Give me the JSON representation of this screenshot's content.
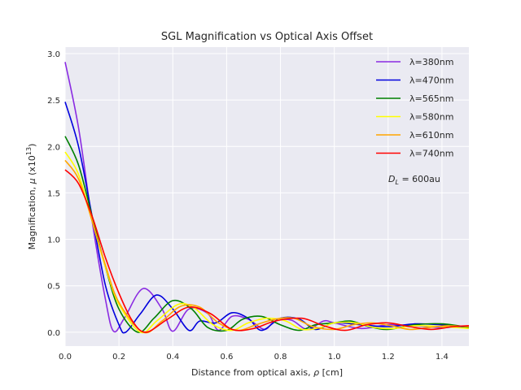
{
  "chart_data": {
    "type": "line",
    "title": "SGL Magnification vs Optical Axis Offset",
    "xlabel_main": "Distance from optical axis, ",
    "xlabel_sym": "ρ",
    "xlabel_unit": " [cm]",
    "ylabel_main": "Magnification, ",
    "ylabel_sym": "μ",
    "ylabel_unit_pre": " (x10",
    "ylabel_unit_exp": "13",
    "ylabel_unit_post": ")",
    "xlim": [
      0,
      1.5
    ],
    "ylim": [
      -0.15,
      3.07
    ],
    "xticks": [
      0.0,
      0.2,
      0.4,
      0.6,
      0.8,
      1.0,
      1.2,
      1.4
    ],
    "xtick_labels": [
      "0.0",
      "0.2",
      "0.4",
      "0.6",
      "0.8",
      "1.0",
      "1.2",
      "1.4"
    ],
    "yticks": [
      0.0,
      0.5,
      1.0,
      1.5,
      2.0,
      2.5,
      3.0
    ],
    "ytick_labels": [
      "0.0",
      "0.5",
      "1.0",
      "1.5",
      "2.0",
      "2.5",
      "3.0"
    ],
    "grid": true,
    "legend_position": "top-right",
    "annotation": {
      "sym": "D",
      "sub": "L",
      "text": " = 600au"
    },
    "series": [
      {
        "name": "λ=380nm",
        "wavelength_nm": 380,
        "color": "#8a2be2",
        "peak": 2.91,
        "first_zero": 0.182,
        "x": [
          0.0,
          0.05,
          0.1,
          0.15,
          0.18,
          0.22,
          0.29,
          0.36,
          0.4,
          0.46,
          0.53,
          0.57,
          0.62,
          0.68,
          0.74,
          0.78,
          0.84,
          0.9,
          0.96,
          1.0,
          1.1,
          1.2,
          1.3,
          1.4,
          1.5
        ],
        "y": [
          2.91,
          2.2,
          1.2,
          0.35,
          0.01,
          0.15,
          0.47,
          0.25,
          0.01,
          0.25,
          0.2,
          0.02,
          0.17,
          0.14,
          0.03,
          0.12,
          0.13,
          0.03,
          0.12,
          0.1,
          0.04,
          0.08,
          0.07,
          0.05,
          0.07
        ]
      },
      {
        "name": "λ=470nm",
        "wavelength_nm": 470,
        "color": "#0000dd",
        "peak": 2.48,
        "first_zero": 0.225,
        "x": [
          0.0,
          0.05,
          0.1,
          0.15,
          0.2,
          0.225,
          0.28,
          0.34,
          0.4,
          0.46,
          0.5,
          0.56,
          0.62,
          0.68,
          0.73,
          0.8,
          0.87,
          0.93,
          1.0,
          1.1,
          1.2,
          1.3,
          1.4,
          1.5
        ],
        "y": [
          2.48,
          2.0,
          1.25,
          0.5,
          0.08,
          0.0,
          0.2,
          0.4,
          0.25,
          0.02,
          0.12,
          0.1,
          0.21,
          0.15,
          0.02,
          0.15,
          0.14,
          0.03,
          0.1,
          0.08,
          0.06,
          0.09,
          0.08,
          0.05
        ]
      },
      {
        "name": "λ=565nm",
        "wavelength_nm": 565,
        "color": "#008000",
        "peak": 2.11,
        "first_zero": 0.27,
        "x": [
          0.0,
          0.05,
          0.1,
          0.15,
          0.2,
          0.27,
          0.33,
          0.4,
          0.47,
          0.53,
          0.6,
          0.66,
          0.73,
          0.8,
          0.87,
          0.93,
          1.0,
          1.06,
          1.13,
          1.2,
          1.3,
          1.4,
          1.5
        ],
        "y": [
          2.11,
          1.8,
          1.25,
          0.7,
          0.25,
          0.0,
          0.15,
          0.34,
          0.25,
          0.05,
          0.02,
          0.14,
          0.17,
          0.08,
          0.02,
          0.08,
          0.1,
          0.12,
          0.06,
          0.03,
          0.08,
          0.09,
          0.05
        ]
      },
      {
        "name": "λ=580nm",
        "wavelength_nm": 580,
        "color": "#ffff00",
        "peak": 1.94,
        "first_zero": 0.28,
        "x": [
          0.0,
          0.05,
          0.1,
          0.15,
          0.2,
          0.28,
          0.34,
          0.42,
          0.48,
          0.55,
          0.62,
          0.68,
          0.75,
          0.82,
          0.88,
          0.95,
          1.0,
          1.08,
          1.15,
          1.22,
          1.3,
          1.4,
          1.5
        ],
        "y": [
          1.94,
          1.7,
          1.2,
          0.7,
          0.3,
          0.0,
          0.12,
          0.3,
          0.26,
          0.08,
          0.02,
          0.1,
          0.15,
          0.12,
          0.03,
          0.05,
          0.1,
          0.1,
          0.05,
          0.04,
          0.07,
          0.06,
          0.04
        ]
      },
      {
        "name": "λ=610nm",
        "wavelength_nm": 610,
        "color": "#ffa500",
        "peak": 1.85,
        "first_zero": 0.29,
        "x": [
          0.0,
          0.05,
          0.1,
          0.15,
          0.2,
          0.29,
          0.36,
          0.43,
          0.5,
          0.57,
          0.64,
          0.71,
          0.78,
          0.85,
          0.92,
          1.0,
          1.07,
          1.14,
          1.21,
          1.28,
          1.35,
          1.42,
          1.5
        ],
        "y": [
          1.85,
          1.65,
          1.2,
          0.72,
          0.32,
          0.0,
          0.12,
          0.28,
          0.27,
          0.1,
          0.02,
          0.08,
          0.14,
          0.15,
          0.06,
          0.03,
          0.08,
          0.1,
          0.07,
          0.03,
          0.05,
          0.07,
          0.06
        ]
      },
      {
        "name": "λ=740nm",
        "wavelength_nm": 740,
        "color": "#ff0000",
        "peak": 1.75,
        "first_zero": 0.3,
        "x": [
          0.0,
          0.05,
          0.1,
          0.15,
          0.2,
          0.25,
          0.3,
          0.38,
          0.46,
          0.54,
          0.62,
          0.7,
          0.78,
          0.88,
          0.96,
          1.04,
          1.12,
          1.2,
          1.28,
          1.36,
          1.44,
          1.5
        ],
        "y": [
          1.75,
          1.6,
          1.25,
          0.8,
          0.42,
          0.12,
          0.0,
          0.14,
          0.27,
          0.2,
          0.03,
          0.04,
          0.12,
          0.15,
          0.07,
          0.02,
          0.08,
          0.1,
          0.06,
          0.03,
          0.06,
          0.07
        ]
      }
    ]
  }
}
